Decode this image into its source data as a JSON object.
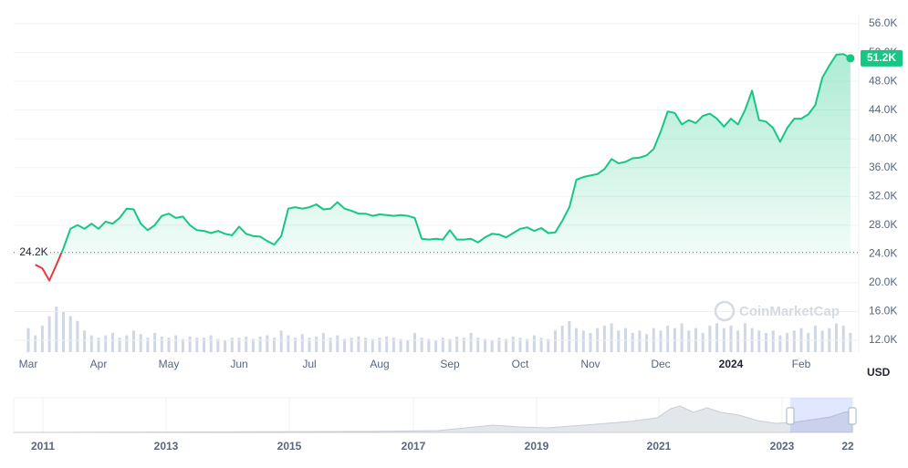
{
  "chart_data": {
    "type": "line",
    "categories": [
      "Mar",
      null,
      null,
      null,
      null,
      null,
      null,
      null,
      null,
      null,
      "Apr",
      null,
      null,
      null,
      null,
      null,
      null,
      null,
      null,
      null,
      "May",
      null,
      null,
      null,
      null,
      null,
      null,
      null,
      null,
      null,
      "Jun",
      null,
      null,
      null,
      null,
      null,
      null,
      null,
      null,
      null,
      "Jul",
      null,
      null,
      null,
      null,
      null,
      null,
      null,
      null,
      null,
      "Aug",
      null,
      null,
      null,
      null,
      null,
      null,
      null,
      null,
      null,
      "Sep",
      null,
      null,
      null,
      null,
      null,
      null,
      null,
      null,
      null,
      "Oct",
      null,
      null,
      null,
      null,
      null,
      null,
      null,
      null,
      null,
      "Nov",
      null,
      null,
      null,
      null,
      null,
      null,
      null,
      null,
      null,
      "Dec",
      null,
      null,
      null,
      null,
      null,
      null,
      null,
      null,
      null,
      "2024",
      null,
      null,
      null,
      null,
      null,
      null,
      null,
      null,
      null,
      "Feb",
      null,
      null,
      null,
      null,
      null,
      null,
      null
    ],
    "values": [
      null,
      22500,
      22000,
      20300,
      22500,
      24800,
      27500,
      28000,
      27500,
      28200,
      27500,
      28500,
      28200,
      29000,
      30300,
      30200,
      28200,
      27300,
      28000,
      29300,
      29600,
      29000,
      29200,
      28000,
      27300,
      27200,
      26900,
      27200,
      26800,
      26600,
      27800,
      26800,
      26500,
      26400,
      25800,
      25300,
      26500,
      30300,
      30500,
      30300,
      30500,
      30900,
      30200,
      30300,
      31200,
      30300,
      30000,
      29600,
      29600,
      29300,
      29500,
      29400,
      29300,
      29400,
      29300,
      29000,
      26100,
      26000,
      26100,
      26000,
      27300,
      26000,
      26000,
      26100,
      25600,
      26300,
      26800,
      26700,
      26300,
      26900,
      27500,
      27700,
      27200,
      27600,
      26900,
      27000,
      28600,
      30500,
      34300,
      34700,
      34900,
      35100,
      35800,
      37200,
      36600,
      36800,
      37300,
      37400,
      37700,
      38600,
      41000,
      43800,
      43600,
      42000,
      42600,
      42200,
      43200,
      43500,
      42800,
      41700,
      42800,
      42000,
      44000,
      46700,
      42600,
      42400,
      41500,
      39600,
      41500,
      42800,
      42800,
      43400,
      44700,
      48500,
      50200,
      51700,
      51800,
      51200
    ],
    "volume_values": [
      20,
      14,
      22,
      30,
      38,
      34,
      30,
      26,
      18,
      14,
      12,
      14,
      16,
      12,
      14,
      18,
      15,
      12,
      16,
      13,
      12,
      14,
      11,
      13,
      12,
      12,
      14,
      11,
      10,
      12,
      12,
      13,
      11,
      13,
      14,
      12,
      18,
      14,
      12,
      15,
      12,
      13,
      16,
      12,
      14,
      11,
      12,
      13,
      12,
      11,
      12,
      13,
      12,
      11,
      10,
      16,
      12,
      11,
      10,
      12,
      11,
      13,
      12,
      16,
      12,
      11,
      10,
      12,
      11,
      13,
      12,
      11,
      14,
      12,
      11,
      18,
      22,
      26,
      20,
      18,
      16,
      20,
      22,
      24,
      18,
      20,
      16,
      18,
      15,
      20,
      18,
      22,
      20,
      24,
      18,
      20,
      16,
      22,
      24,
      20,
      22,
      18,
      24,
      20,
      18,
      16,
      18,
      14,
      16,
      18,
      20,
      16,
      22,
      18,
      20,
      24,
      22,
      16
    ],
    "up_color": "#16c784",
    "down_color": "#ea3943",
    "volume_color": "#cfd6e4",
    "ylim": [
      10350,
      57400
    ],
    "yticks": [
      {
        "value": 12000,
        "label": "12.0K"
      },
      {
        "value": 16000,
        "label": "16.0K"
      },
      {
        "value": 20000,
        "label": "20.0K"
      },
      {
        "value": 24000,
        "label": "24.0K"
      },
      {
        "value": 28000,
        "label": "28.0K"
      },
      {
        "value": 32000,
        "label": "32.0K"
      },
      {
        "value": 36000,
        "label": "36.0K"
      },
      {
        "value": 40000,
        "label": "40.0K"
      },
      {
        "value": 44000,
        "label": "44.0K"
      },
      {
        "value": 48000,
        "label": "48.0K"
      },
      {
        "value": 52000,
        "label": "52.0K"
      },
      {
        "value": 56000,
        "label": "56.0K"
      }
    ],
    "grid": true,
    "baseline": {
      "value": 24200,
      "label": "24.2K"
    },
    "current": {
      "value": 51200,
      "label": "51.2K"
    },
    "currency": "USD",
    "watermark": "CoinMarketCap",
    "navigator_labels": [
      "2011",
      "2013",
      "2015",
      "2017",
      "2019",
      "2021",
      "2023",
      "22"
    ]
  }
}
